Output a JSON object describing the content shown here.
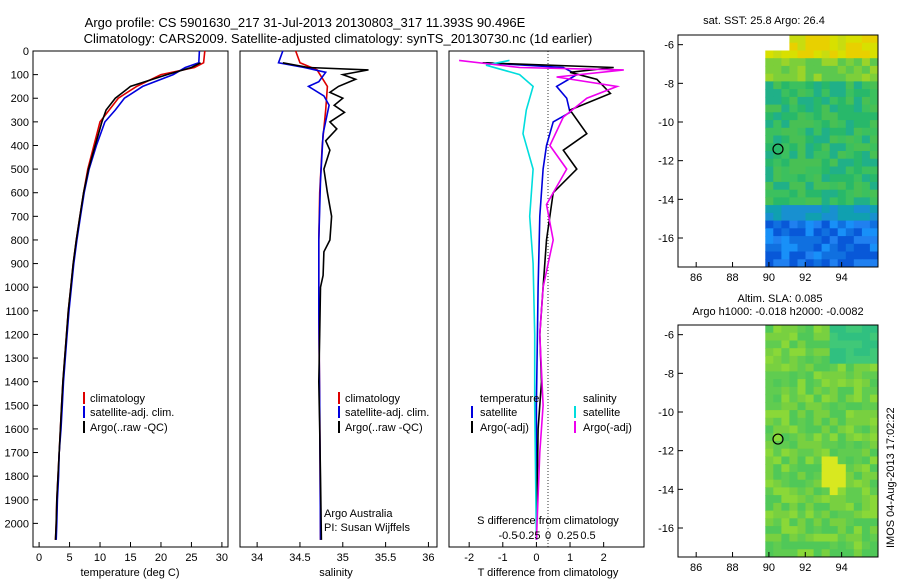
{
  "title": {
    "line1": "Argo profile: CS 5901630_217 31-Jul-2013 20130803_317 11.393S 90.496E",
    "line2": "Climatology: CARS2009. Satellite-adjusted climatology: synTS_20130730.nc (1d earlier)"
  },
  "colors": {
    "climatology": "#dd0000",
    "satellite": "#0000dd",
    "argo": "#000000",
    "satellite_s": "#00dddd",
    "argo_s": "#ee00ee"
  },
  "chart_data": [
    {
      "type": "line",
      "id": "temperature",
      "xlabel": "temperature (deg C)",
      "ylabel": "",
      "xlim": [
        -1,
        31
      ],
      "ylim": [
        2100,
        0
      ],
      "xticks": [
        0,
        5,
        10,
        15,
        20,
        25,
        30
      ],
      "yticks": [
        0,
        100,
        200,
        300,
        400,
        500,
        600,
        700,
        800,
        900,
        1000,
        1100,
        1200,
        1300,
        1400,
        1500,
        1600,
        1700,
        1800,
        1900,
        2000
      ],
      "legend": [
        "climatology",
        "satellite-adj. clim.",
        "Argo(..raw -QC)"
      ],
      "series": [
        {
          "name": "climatology",
          "color": "#dd0000",
          "points": [
            [
              27.2,
              0
            ],
            [
              27.0,
              50
            ],
            [
              25.5,
              70
            ],
            [
              20,
              100
            ],
            [
              16,
              150
            ],
            [
              13,
              200
            ],
            [
              11.5,
              250
            ],
            [
              10,
              300
            ],
            [
              9,
              400
            ],
            [
              8,
              500
            ],
            [
              7.3,
              600
            ],
            [
              6.7,
              700
            ],
            [
              6.1,
              800
            ],
            [
              5.6,
              900
            ],
            [
              5.2,
              1000
            ],
            [
              4.8,
              1100
            ],
            [
              4.5,
              1200
            ],
            [
              4.2,
              1300
            ],
            [
              3.9,
              1400
            ],
            [
              3.7,
              1500
            ],
            [
              3.5,
              1600
            ],
            [
              3.3,
              1700
            ],
            [
              3.1,
              1800
            ],
            [
              2.9,
              1900
            ],
            [
              2.8,
              2000
            ],
            [
              2.7,
              2070
            ]
          ]
        },
        {
          "name": "satellite-adj. clim.",
          "color": "#0000dd",
          "points": [
            [
              26.3,
              0
            ],
            [
              26.2,
              50
            ],
            [
              24,
              70
            ],
            [
              22,
              100
            ],
            [
              17,
              150
            ],
            [
              14,
              200
            ],
            [
              12.5,
              250
            ],
            [
              10.8,
              300
            ],
            [
              9.4,
              400
            ],
            [
              8.2,
              500
            ],
            [
              7.4,
              600
            ],
            [
              6.8,
              700
            ],
            [
              6.2,
              800
            ],
            [
              5.7,
              900
            ],
            [
              5.3,
              1000
            ],
            [
              4.9,
              1100
            ],
            [
              4.6,
              1200
            ],
            [
              4.3,
              1300
            ],
            [
              4.0,
              1400
            ],
            [
              3.8,
              1500
            ],
            [
              3.6,
              1600
            ],
            [
              3.3,
              1700
            ],
            [
              3.2,
              1800
            ],
            [
              3.0,
              1900
            ],
            [
              2.9,
              2000
            ],
            [
              2.8,
              2070
            ]
          ]
        },
        {
          "name": "Argo(..raw -QC)",
          "color": "#000000",
          "points": [
            [
              26.5,
              50
            ],
            [
              25,
              70
            ],
            [
              21,
              100
            ],
            [
              15,
              150
            ],
            [
              12.5,
              200
            ],
            [
              11,
              250
            ],
            [
              10.3,
              300
            ],
            [
              9.2,
              400
            ],
            [
              8.1,
              500
            ],
            [
              7.3,
              600
            ],
            [
              6.7,
              700
            ],
            [
              6.1,
              800
            ],
            [
              5.6,
              900
            ],
            [
              5.2,
              1000
            ],
            [
              4.8,
              1100
            ],
            [
              4.5,
              1200
            ],
            [
              4.2,
              1300
            ],
            [
              3.9,
              1400
            ],
            [
              3.7,
              1500
            ],
            [
              3.5,
              1600
            ],
            [
              3.3,
              1700
            ],
            [
              3.1,
              1800
            ],
            [
              2.9,
              1900
            ],
            [
              2.8,
              2000
            ],
            [
              2.7,
              2070
            ]
          ]
        }
      ]
    },
    {
      "type": "line",
      "id": "salinity",
      "xlabel": "salinity",
      "ylabel": "",
      "xlim": [
        33.8,
        36.1
      ],
      "ylim": [
        2100,
        0
      ],
      "xticks": [
        34,
        34.5,
        35,
        35.5,
        36
      ],
      "legend": [
        "climatology",
        "satellite-adj. clim.",
        "Argo(..raw -QC)"
      ],
      "annotations": [
        "Argo Australia",
        "PI: Susan Wijffels"
      ],
      "series": [
        {
          "name": "climatology",
          "color": "#dd0000",
          "points": [
            [
              34.45,
              0
            ],
            [
              34.5,
              50
            ],
            [
              34.7,
              80
            ],
            [
              34.82,
              150
            ],
            [
              34.8,
              250
            ],
            [
              34.76,
              400
            ],
            [
              34.73,
              600
            ],
            [
              34.72,
              800
            ],
            [
              34.72,
              1100
            ],
            [
              34.73,
              1500
            ],
            [
              34.74,
              2070
            ]
          ]
        },
        {
          "name": "satellite-adj. clim.",
          "color": "#0000dd",
          "points": [
            [
              34.3,
              0
            ],
            [
              34.25,
              50
            ],
            [
              34.55,
              70
            ],
            [
              34.8,
              90
            ],
            [
              34.72,
              130
            ],
            [
              34.6,
              150
            ],
            [
              34.78,
              190
            ],
            [
              34.84,
              230
            ],
            [
              34.77,
              350
            ],
            [
              34.74,
              550
            ],
            [
              34.72,
              800
            ],
            [
              34.72,
              1100
            ],
            [
              34.73,
              1500
            ],
            [
              34.74,
              2070
            ]
          ]
        },
        {
          "name": "Argo(..raw -QC)",
          "color": "#000000",
          "points": [
            [
              34.3,
              50
            ],
            [
              34.6,
              70
            ],
            [
              35.3,
              80
            ],
            [
              35.0,
              100
            ],
            [
              35.15,
              120
            ],
            [
              34.95,
              150
            ],
            [
              34.85,
              175
            ],
            [
              35.0,
              200
            ],
            [
              34.9,
              230
            ],
            [
              35.02,
              260
            ],
            [
              34.85,
              300
            ],
            [
              34.93,
              330
            ],
            [
              34.8,
              380
            ],
            [
              34.85,
              420
            ],
            [
              34.78,
              500
            ],
            [
              34.82,
              600
            ],
            [
              34.87,
              700
            ],
            [
              34.85,
              800
            ],
            [
              34.78,
              850
            ],
            [
              34.77,
              950
            ],
            [
              34.74,
              1000
            ],
            [
              34.73,
              1200
            ],
            [
              34.72,
              1400
            ],
            [
              34.73,
              1600
            ],
            [
              34.74,
              1800
            ],
            [
              34.75,
              2070
            ]
          ]
        }
      ]
    },
    {
      "type": "line",
      "id": "difference",
      "xlabel": "T difference from climatology",
      "xlabel2": "S difference from climatology",
      "xlim": [
        -2.6,
        3.2
      ],
      "ylim": [
        2100,
        0
      ],
      "xticks": [
        -2,
        -1,
        0,
        1,
        2
      ],
      "xticks_s": [
        -0.5,
        -0.25,
        0,
        0.25,
        0.5
      ],
      "legend_titles": [
        "temperature",
        "salinity"
      ],
      "legend": [
        "satellite",
        "Argo(-adj)",
        "satellite",
        "Argo(-adj)"
      ],
      "series": [
        {
          "name": "satellite",
          "color": "#0000dd",
          "points": [
            [
              -1.5,
              50
            ],
            [
              0.8,
              70
            ],
            [
              1.2,
              100
            ],
            [
              0.6,
              150
            ],
            [
              0.9,
              200
            ],
            [
              1.0,
              260
            ],
            [
              0.5,
              300
            ],
            [
              0.3,
              400
            ],
            [
              0.2,
              500
            ],
            [
              0.1,
              700
            ],
            [
              0.05,
              1000
            ],
            [
              0.0,
              1500
            ],
            [
              0.0,
              2070
            ]
          ]
        },
        {
          "name": "Argo(-adj)",
          "color": "#000000",
          "points": [
            [
              -1.6,
              50
            ],
            [
              2.3,
              70
            ],
            [
              1.0,
              90
            ],
            [
              1.8,
              120
            ],
            [
              2.2,
              180
            ],
            [
              1.0,
              250
            ],
            [
              1.5,
              350
            ],
            [
              0.8,
              420
            ],
            [
              1.2,
              500
            ],
            [
              0.5,
              600
            ],
            [
              0.3,
              800
            ],
            [
              0.2,
              1000
            ],
            [
              0.1,
              1200
            ],
            [
              0.15,
              1400
            ],
            [
              0.05,
              1600
            ],
            [
              0.0,
              2070
            ]
          ]
        },
        {
          "name": "satellite",
          "color": "#00dddd",
          "points": [
            [
              -0.8,
              40
            ],
            [
              -1.5,
              60
            ],
            [
              -0.5,
              100
            ],
            [
              -0.1,
              150
            ],
            [
              -0.3,
              250
            ],
            [
              -0.4,
              350
            ],
            [
              -0.1,
              500
            ],
            [
              -0.2,
              700
            ],
            [
              -0.1,
              900
            ],
            [
              -0.05,
              1200
            ],
            [
              -0.05,
              1500
            ],
            [
              0.0,
              2070
            ]
          ]
        },
        {
          "name": "Argo(-adj)",
          "color": "#ee00ee",
          "points": [
            [
              -2.3,
              40
            ],
            [
              -0.5,
              70
            ],
            [
              2.6,
              80
            ],
            [
              0.6,
              110
            ],
            [
              2.4,
              150
            ],
            [
              1.5,
              200
            ],
            [
              0.8,
              280
            ],
            [
              0.4,
              400
            ],
            [
              0.9,
              500
            ],
            [
              0.3,
              650
            ],
            [
              0.5,
              800
            ],
            [
              0.2,
              1000
            ],
            [
              0.1,
              1200
            ],
            [
              0.2,
              1500
            ],
            [
              0.1,
              1700
            ],
            [
              0.0,
              2070
            ]
          ]
        }
      ]
    },
    {
      "type": "heatmap",
      "id": "sst-map",
      "title": "sat. SST: 25.8 Argo: 26.4",
      "xlim": [
        85,
        96
      ],
      "ylim": [
        -17.5,
        -5.5
      ],
      "xticks": [
        86,
        88,
        90,
        92,
        94
      ],
      "yticks": [
        -6,
        -8,
        -10,
        -12,
        -14,
        -16
      ],
      "marker": [
        90.5,
        -11.4
      ]
    },
    {
      "type": "heatmap",
      "id": "sla-map",
      "title": "Altim. SLA: 0.085",
      "subtitle": "Argo h1000: -0.018 h2000: -0.0082",
      "xlim": [
        85,
        96
      ],
      "ylim": [
        -17.5,
        -5.5
      ],
      "xticks": [
        86,
        88,
        90,
        92,
        94
      ],
      "yticks": [
        -6,
        -8,
        -10,
        -12,
        -14,
        -16
      ],
      "marker": [
        90.5,
        -11.4
      ]
    }
  ],
  "footer": {
    "stamp": "IMOS 04-Aug-2013 17:02:22"
  }
}
